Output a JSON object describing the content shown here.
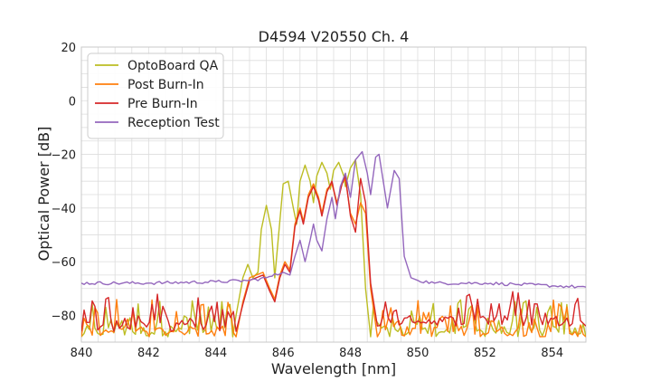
{
  "chart_data": {
    "type": "line",
    "title": "D4594 V20550 Ch. 4",
    "xlabel": "Wavelength [nm]",
    "ylabel": "Optical Power [dB]",
    "xlim": [
      840,
      855
    ],
    "ylim": [
      -90,
      20
    ],
    "xticks": [
      840,
      842,
      844,
      846,
      848,
      850,
      852,
      854
    ],
    "yticks": [
      -80,
      -60,
      -40,
      -20,
      0,
      20
    ],
    "grid": true,
    "legend_position": "top-left",
    "series": [
      {
        "name": "OptoBoard QA",
        "color": "#bcbd22",
        "points": [
          [
            840,
            -88
          ],
          [
            844.5,
            -88
          ],
          [
            844.6,
            -80
          ],
          [
            844.8,
            -66
          ],
          [
            844.95,
            -61
          ],
          [
            845.1,
            -66
          ],
          [
            845.25,
            -64
          ],
          [
            845.35,
            -48
          ],
          [
            845.5,
            -39
          ],
          [
            845.65,
            -48
          ],
          [
            845.75,
            -66
          ],
          [
            845.85,
            -52
          ],
          [
            846.0,
            -31
          ],
          [
            846.15,
            -30
          ],
          [
            846.3,
            -40
          ],
          [
            846.4,
            -46
          ],
          [
            846.5,
            -30
          ],
          [
            846.65,
            -24
          ],
          [
            846.8,
            -30
          ],
          [
            846.9,
            -38
          ],
          [
            847.0,
            -28
          ],
          [
            847.15,
            -23
          ],
          [
            847.3,
            -27
          ],
          [
            847.4,
            -33
          ],
          [
            847.5,
            -26
          ],
          [
            847.65,
            -23
          ],
          [
            847.8,
            -28
          ],
          [
            847.85,
            -32
          ],
          [
            848.0,
            -25
          ],
          [
            848.15,
            -22
          ],
          [
            848.3,
            -35
          ],
          [
            848.45,
            -70
          ],
          [
            848.6,
            -88
          ],
          [
            855,
            -88
          ]
        ]
      },
      {
        "name": "Post Burn-In",
        "color": "#ff7f0e",
        "points": [
          [
            840,
            -88
          ],
          [
            844.6,
            -88
          ],
          [
            844.8,
            -75
          ],
          [
            845.0,
            -66
          ],
          [
            845.2,
            -65
          ],
          [
            845.4,
            -64
          ],
          [
            845.6,
            -70
          ],
          [
            845.75,
            -74
          ],
          [
            845.9,
            -65
          ],
          [
            846.05,
            -60
          ],
          [
            846.2,
            -63
          ],
          [
            846.35,
            -46
          ],
          [
            846.5,
            -40
          ],
          [
            846.6,
            -45
          ],
          [
            846.75,
            -35
          ],
          [
            846.9,
            -31
          ],
          [
            847.05,
            -36
          ],
          [
            847.15,
            -42
          ],
          [
            847.3,
            -33
          ],
          [
            847.45,
            -31
          ],
          [
            847.6,
            -38
          ],
          [
            847.75,
            -31
          ],
          [
            847.85,
            -29
          ],
          [
            848.0,
            -42
          ],
          [
            848.15,
            -46
          ],
          [
            848.3,
            -38
          ],
          [
            848.45,
            -42
          ],
          [
            848.6,
            -70
          ],
          [
            848.8,
            -88
          ],
          [
            855,
            -88
          ]
        ]
      },
      {
        "name": "Pre Burn-In",
        "color": "#d62728",
        "points": [
          [
            840,
            -86
          ],
          [
            844.6,
            -86
          ],
          [
            844.8,
            -76
          ],
          [
            845.0,
            -67
          ],
          [
            845.2,
            -66
          ],
          [
            845.4,
            -65
          ],
          [
            845.6,
            -71
          ],
          [
            845.75,
            -75
          ],
          [
            845.9,
            -66
          ],
          [
            846.05,
            -61
          ],
          [
            846.2,
            -64
          ],
          [
            846.35,
            -47
          ],
          [
            846.5,
            -41
          ],
          [
            846.6,
            -46
          ],
          [
            846.75,
            -36
          ],
          [
            846.9,
            -32
          ],
          [
            847.05,
            -37
          ],
          [
            847.15,
            -43
          ],
          [
            847.3,
            -34
          ],
          [
            847.45,
            -30
          ],
          [
            847.6,
            -39
          ],
          [
            847.75,
            -31
          ],
          [
            847.85,
            -28
          ],
          [
            848.0,
            -43
          ],
          [
            848.15,
            -49
          ],
          [
            848.3,
            -29
          ],
          [
            848.45,
            -38
          ],
          [
            848.6,
            -68
          ],
          [
            848.8,
            -84
          ],
          [
            855,
            -84
          ]
        ]
      },
      {
        "name": "Reception Test",
        "color": "#9467bd",
        "points": [
          [
            840,
            -68
          ],
          [
            842,
            -68
          ],
          [
            844,
            -67.5
          ],
          [
            845,
            -67
          ],
          [
            845.5,
            -66
          ],
          [
            846.0,
            -64
          ],
          [
            846.2,
            -65
          ],
          [
            846.35,
            -58
          ],
          [
            846.5,
            -52
          ],
          [
            846.65,
            -60
          ],
          [
            846.8,
            -52
          ],
          [
            846.9,
            -46
          ],
          [
            847.0,
            -52
          ],
          [
            847.15,
            -56
          ],
          [
            847.3,
            -44
          ],
          [
            847.45,
            -36
          ],
          [
            847.55,
            -44
          ],
          [
            847.7,
            -32
          ],
          [
            847.85,
            -27
          ],
          [
            848.0,
            -36
          ],
          [
            848.15,
            -22
          ],
          [
            848.35,
            -19
          ],
          [
            848.5,
            -27
          ],
          [
            848.6,
            -35
          ],
          [
            848.75,
            -21
          ],
          [
            848.85,
            -20
          ],
          [
            849.0,
            -32
          ],
          [
            849.1,
            -40
          ],
          [
            849.3,
            -26
          ],
          [
            849.45,
            -29
          ],
          [
            849.6,
            -58
          ],
          [
            849.8,
            -66
          ],
          [
            850.0,
            -67
          ],
          [
            850.5,
            -68
          ],
          [
            852,
            -68
          ],
          [
            853,
            -68.5
          ],
          [
            854,
            -69
          ],
          [
            855,
            -69.5
          ]
        ]
      }
    ]
  }
}
